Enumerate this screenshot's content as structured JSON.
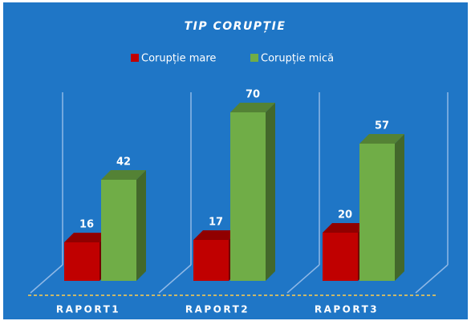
{
  "chart_data": {
    "type": "bar3d",
    "title": "TIP CORUPȚIE",
    "categories": [
      "RAPORT1",
      "RAPORT2",
      "RAPORT3"
    ],
    "series": [
      {
        "name": "Corupție mare",
        "color": "#c00000",
        "values": [
          16,
          17,
          20
        ]
      },
      {
        "name": "Corupție mică",
        "color": "#70ad47",
        "values": [
          42,
          70,
          57
        ]
      }
    ]
  }
}
